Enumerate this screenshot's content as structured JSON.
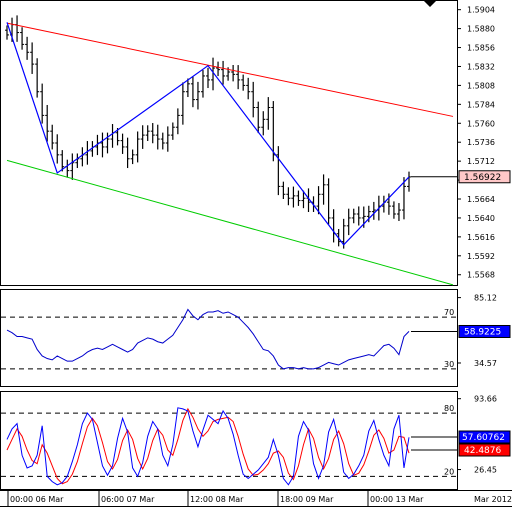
{
  "chart_data": {
    "type": "ohlc",
    "symbol": "",
    "colors": {
      "bars": "#000000",
      "resistance_line": "#ff0000",
      "support_line": "#00cc00",
      "zigzag": "#0000ff",
      "rsi": "#0000cc",
      "stoch_k": "#0000ff",
      "stoch_d": "#ff0000",
      "last_price_tag": "#ffc8c8",
      "rsi_tag": "#0000ff",
      "stoch_k_tag": "#0000ff",
      "stoch_d_tag": "#ff0000"
    },
    "price_panel": {
      "ylim": [
        1.5555,
        1.5915
      ],
      "ticks": [
        "1.5904",
        "1.5880",
        "1.5856",
        "1.5832",
        "1.5808",
        "1.5784",
        "1.5760",
        "1.5736",
        "1.5712",
        "1.5688",
        "1.5664",
        "1.5640",
        "1.5616",
        "1.5592",
        "1.5568"
      ],
      "last_price": "1.56922",
      "closes": [
        1.5872,
        1.5885,
        1.5875,
        1.586,
        1.585,
        1.5835,
        1.58,
        1.577,
        1.575,
        1.5735,
        1.572,
        1.5705,
        1.57,
        1.571,
        1.5715,
        1.572,
        1.5725,
        1.573,
        1.5735,
        1.573,
        1.574,
        1.5748,
        1.5738,
        1.573,
        1.5715,
        1.572,
        1.574,
        1.5745,
        1.575,
        1.5745,
        1.574,
        1.5735,
        1.5745,
        1.5755,
        1.577,
        1.58,
        1.581,
        1.579,
        1.58,
        1.582,
        1.5815,
        1.583,
        1.5828,
        1.582,
        1.5825,
        1.5822,
        1.5815,
        1.5808,
        1.58,
        1.578,
        1.5755,
        1.5765,
        1.578,
        1.572,
        1.568,
        1.567,
        1.5665,
        1.5668,
        1.5662,
        1.5665,
        1.566,
        1.5655,
        1.567,
        1.5682,
        1.564,
        1.562,
        1.561,
        1.563,
        1.564,
        1.5645,
        1.564,
        1.5642,
        1.5648,
        1.565,
        1.5655,
        1.566,
        1.5655,
        1.5645,
        1.565,
        1.568,
        1.5692
      ],
      "resistance_line": {
        "from": [
          0,
          1.5887
        ],
        "to": [
          81,
          1.5779
        ]
      },
      "support_line": {
        "from": [
          0,
          1.5713
        ],
        "to": [
          81,
          1.5569
        ]
      },
      "zigzag": [
        [
          0,
          1.5888
        ],
        [
          10,
          1.5697
        ],
        [
          40,
          1.5833
        ],
        [
          67,
          1.5606
        ],
        [
          80,
          1.5692
        ]
      ]
    },
    "rsi_panel": {
      "ylim": [
        16,
        91
      ],
      "ticks": [
        "85.12",
        "34.57"
      ],
      "levels": [
        70,
        30
      ],
      "level_labels": [
        "70",
        "30"
      ],
      "last_value": "58.9225",
      "values": [
        60,
        58,
        55,
        55,
        54,
        53,
        45,
        40,
        38,
        37,
        40,
        38,
        36,
        36,
        38,
        40,
        43,
        45,
        46,
        45,
        47,
        49,
        47,
        45,
        43,
        45,
        50,
        52,
        54,
        53,
        51,
        50,
        53,
        56,
        62,
        68,
        76,
        71,
        68,
        72,
        74,
        74,
        75,
        73,
        74,
        72,
        70,
        66,
        62,
        57,
        51,
        45,
        44,
        40,
        33,
        30,
        31,
        31,
        30,
        31,
        30,
        30,
        31,
        33,
        35,
        34,
        33,
        35,
        37,
        38,
        39,
        40,
        41,
        40,
        44,
        48,
        49,
        46,
        41,
        55,
        59
      ]
    },
    "stoch_panel": {
      "ylim": [
        8,
        100
      ],
      "ticks": [
        "93.66",
        "26.45"
      ],
      "levels": [
        80,
        20
      ],
      "level_labels": [
        "80",
        "20"
      ],
      "k_last": "57.60762",
      "d_last": "42.4876",
      "k": [
        55,
        65,
        70,
        40,
        28,
        30,
        40,
        68,
        20,
        15,
        12,
        14,
        20,
        34,
        50,
        70,
        80,
        74,
        52,
        30,
        21,
        30,
        56,
        75,
        62,
        28,
        20,
        33,
        58,
        72,
        65,
        40,
        30,
        50,
        85,
        84,
        82,
        63,
        48,
        64,
        78,
        74,
        70,
        82,
        75,
        60,
        40,
        22,
        18,
        22,
        26,
        32,
        38,
        55,
        40,
        18,
        12,
        20,
        58,
        72,
        64,
        32,
        18,
        30,
        62,
        74,
        54,
        24,
        18,
        22,
        30,
        40,
        63,
        73,
        55,
        40,
        30,
        65,
        78,
        28,
        57
      ],
      "d": [
        45,
        55,
        65,
        58,
        45,
        35,
        32,
        50,
        42,
        30,
        18,
        13,
        15,
        22,
        34,
        51,
        67,
        75,
        68,
        52,
        34,
        27,
        36,
        54,
        64,
        55,
        37,
        27,
        37,
        54,
        65,
        59,
        45,
        40,
        55,
        73,
        84,
        76,
        65,
        58,
        63,
        72,
        74,
        75,
        76,
        72,
        58,
        41,
        27,
        21,
        22,
        26,
        32,
        42,
        44,
        38,
        23,
        17,
        30,
        50,
        65,
        56,
        38,
        27,
        37,
        55,
        63,
        51,
        32,
        21,
        23,
        31,
        44,
        59,
        64,
        56,
        42,
        45,
        58,
        57,
        42
      ]
    },
    "x_ticks": [
      "00:00 06 Mar",
      "06:00 07 Mar",
      "12:00 08 Mar",
      "18:00 09 Mar",
      "00:00 13 Mar",
      "Mar 2012"
    ]
  }
}
